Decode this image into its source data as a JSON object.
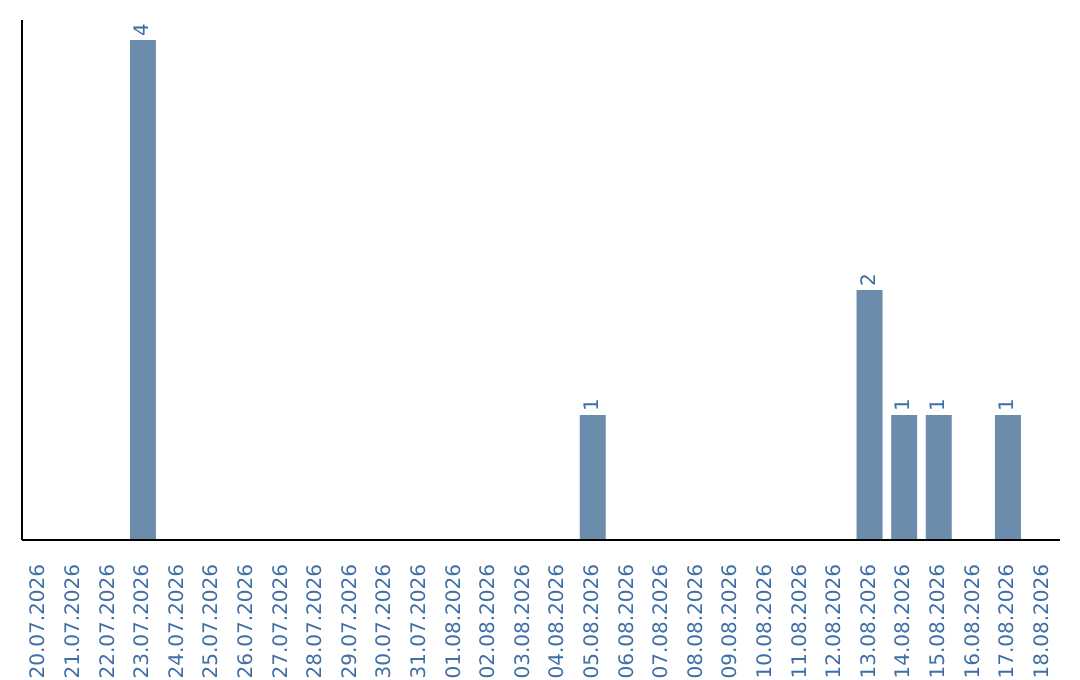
{
  "chart_data": {
    "type": "bar",
    "categories": [
      "20.07.2026",
      "21.07.2026",
      "22.07.2026",
      "23.07.2026",
      "24.07.2026",
      "25.07.2026",
      "26.07.2026",
      "27.07.2026",
      "28.07.2026",
      "29.07.2026",
      "30.07.2026",
      "31.07.2026",
      "01.08.2026",
      "02.08.2026",
      "03.08.2026",
      "04.08.2026",
      "05.08.2026",
      "06.08.2026",
      "07.08.2026",
      "08.08.2026",
      "09.08.2026",
      "10.08.2026",
      "11.08.2026",
      "12.08.2026",
      "13.08.2026",
      "14.08.2026",
      "15.08.2026",
      "16.08.2026",
      "17.08.2026",
      "18.08.2026"
    ],
    "values": [
      null,
      null,
      null,
      4,
      null,
      null,
      null,
      null,
      null,
      null,
      null,
      null,
      null,
      null,
      null,
      null,
      1,
      null,
      null,
      null,
      null,
      null,
      null,
      null,
      2,
      1,
      1,
      null,
      1,
      null
    ],
    "color": "#6b8cab",
    "ylim": [
      0,
      4.16
    ],
    "tick_labels": "x",
    "data_labels": true,
    "grid": false,
    "legend": false
  }
}
